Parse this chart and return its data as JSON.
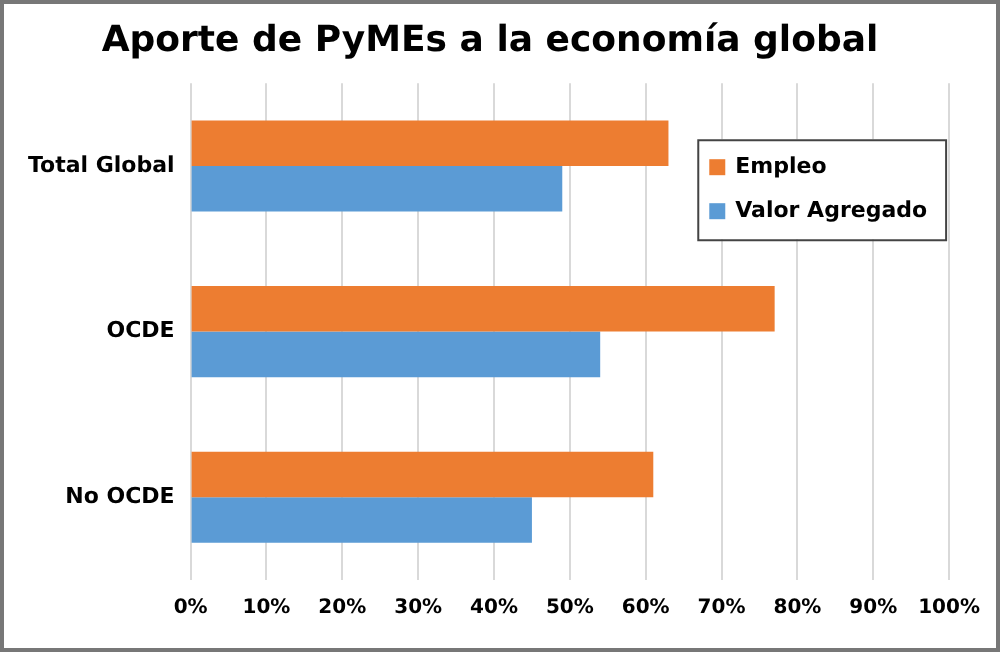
{
  "chart_data": {
    "type": "bar",
    "orientation": "horizontal",
    "title": "Aporte de PyMEs a la economía global",
    "categories": [
      "Total Global",
      "OCDE",
      "No OCDE"
    ],
    "series": [
      {
        "name": "Empleo",
        "color": "#ed7d31",
        "values": [
          63,
          77,
          61
        ]
      },
      {
        "name": "Valor Agregado",
        "color": "#5b9bd5",
        "values": [
          49,
          54,
          45
        ]
      }
    ],
    "xlim": [
      0,
      100
    ],
    "xticks": [
      {
        "value": 0,
        "label": "0%"
      },
      {
        "value": 10,
        "label": "10%"
      },
      {
        "value": 20,
        "label": "20%"
      },
      {
        "value": 30,
        "label": "30%"
      },
      {
        "value": 40,
        "label": "40%"
      },
      {
        "value": 50,
        "label": "50%"
      },
      {
        "value": 60,
        "label": "60%"
      },
      {
        "value": 70,
        "label": "70%"
      },
      {
        "value": 80,
        "label": "80%"
      },
      {
        "value": 90,
        "label": "90%"
      },
      {
        "value": 100,
        "label": "100%"
      }
    ],
    "grid": "x",
    "legend": "top right"
  }
}
